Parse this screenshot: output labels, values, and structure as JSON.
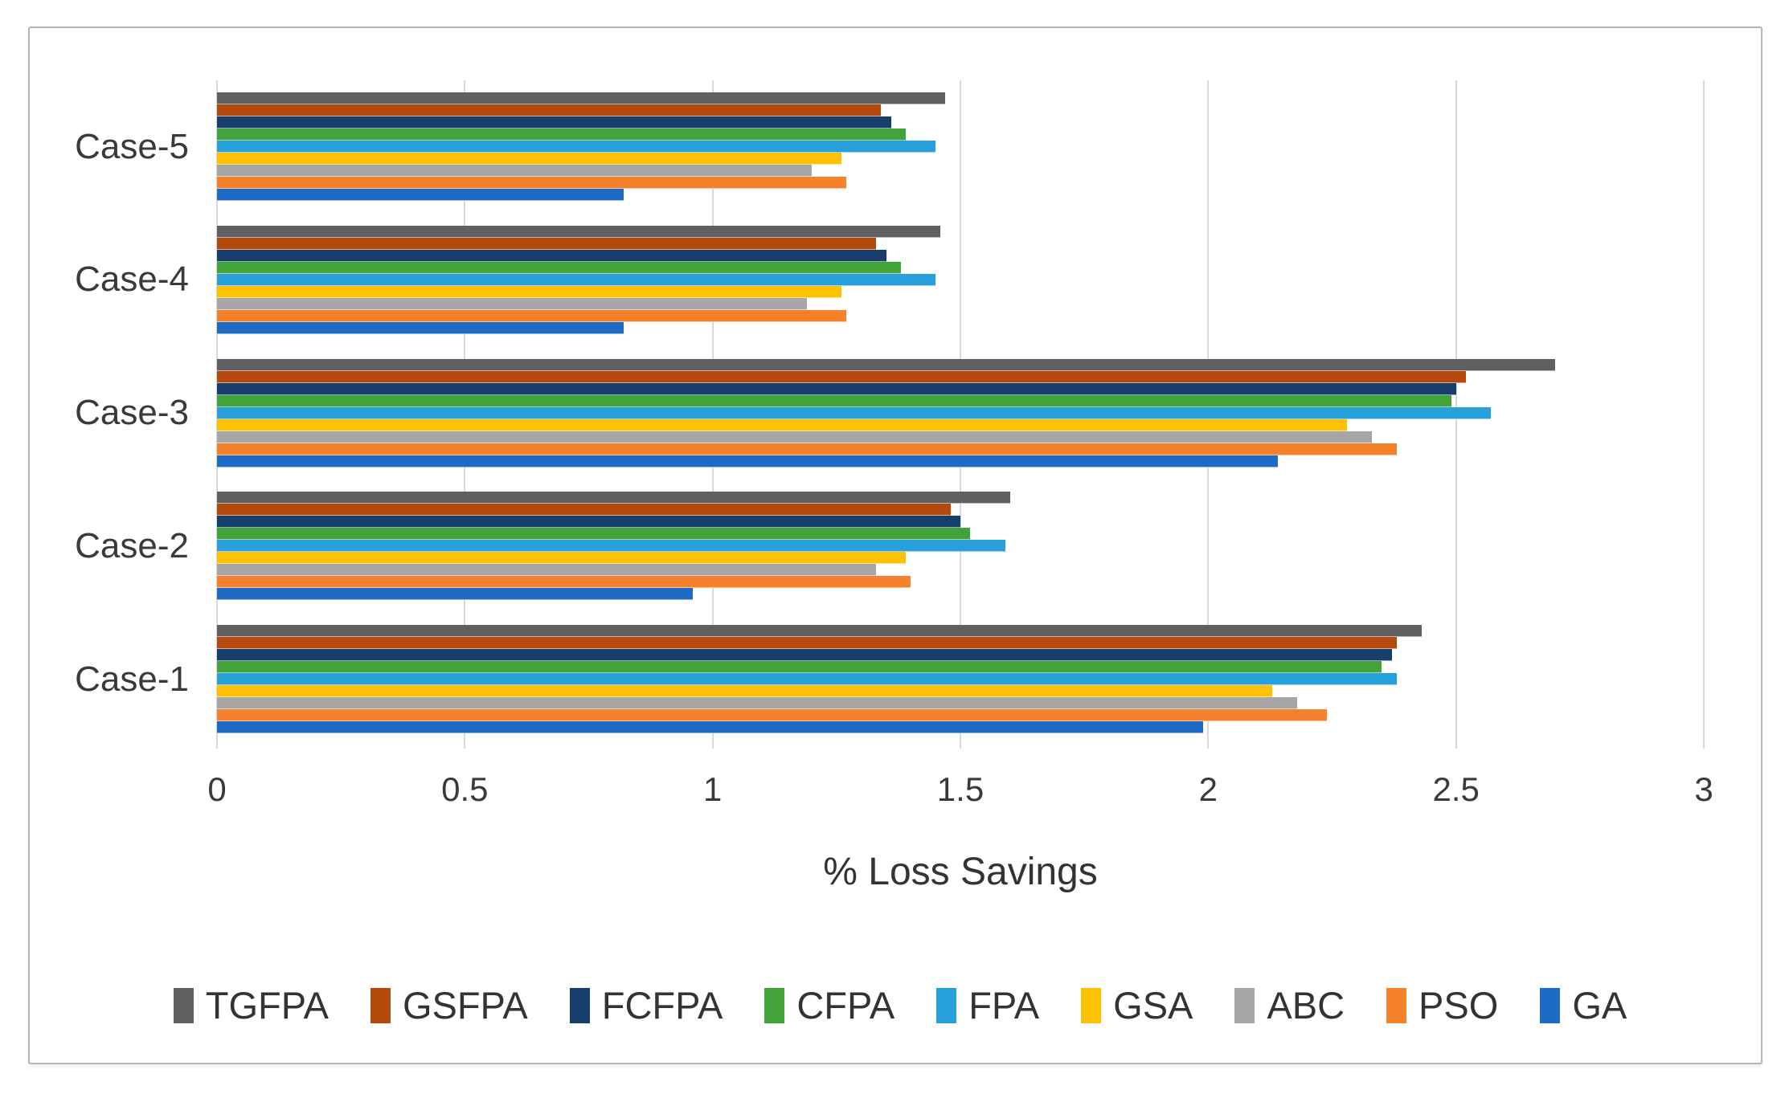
{
  "chart_data": {
    "type": "bar",
    "orientation": "horizontal",
    "title": "",
    "xlabel": "% Loss Savings",
    "ylabel": "",
    "xlim": [
      0,
      3
    ],
    "x_tick_values": [
      0,
      0.5,
      1,
      1.5,
      2,
      2.5,
      3
    ],
    "x_tick_labels": [
      "0",
      "0.5",
      "1",
      "1.5",
      "2",
      "2.5",
      "3"
    ],
    "categories_top_to_bottom": [
      "Case-5",
      "Case-4",
      "Case-3",
      "Case-2",
      "Case-1"
    ],
    "grid": true,
    "legend_position": "bottom",
    "colors": {
      "grid": "#d9d9d9",
      "text": "#3a3a3a",
      "frame_border": "#b5b5b5"
    },
    "series": [
      {
        "name": "TGFPA",
        "color": "#606060",
        "values_top_to_bottom": [
          1.47,
          1.46,
          2.7,
          1.6,
          2.43
        ]
      },
      {
        "name": "GSFPA",
        "color": "#b54a0d",
        "values_top_to_bottom": [
          1.34,
          1.33,
          2.52,
          1.48,
          2.38
        ]
      },
      {
        "name": "FCFPA",
        "color": "#163f6e",
        "values_top_to_bottom": [
          1.36,
          1.35,
          2.5,
          1.5,
          2.37
        ]
      },
      {
        "name": "CFPA",
        "color": "#42a33a",
        "values_top_to_bottom": [
          1.39,
          1.38,
          2.49,
          1.52,
          2.35
        ]
      },
      {
        "name": "FPA",
        "color": "#28a0db",
        "values_top_to_bottom": [
          1.45,
          1.45,
          2.57,
          1.59,
          2.38
        ]
      },
      {
        "name": "GSA",
        "color": "#ffc103",
        "values_top_to_bottom": [
          1.26,
          1.26,
          2.28,
          1.39,
          2.13
        ]
      },
      {
        "name": "ABC",
        "color": "#a6a6a6",
        "values_top_to_bottom": [
          1.2,
          1.19,
          2.33,
          1.33,
          2.18
        ]
      },
      {
        "name": "PSO",
        "color": "#f5812d",
        "values_top_to_bottom": [
          1.27,
          1.27,
          2.38,
          1.4,
          2.24
        ]
      },
      {
        "name": "GA",
        "color": "#1d6bc4",
        "values_top_to_bottom": [
          0.82,
          0.82,
          2.14,
          0.96,
          1.99
        ]
      }
    ]
  }
}
